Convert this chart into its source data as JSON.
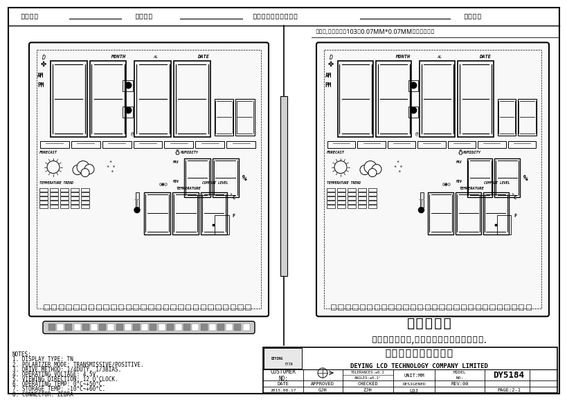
{
  "bg_color": "#ffffff",
  "header_text": [
    "排版模数",
    "确认日期",
    "客户签名确认所有图纸",
    "空盒出货"
  ],
  "note_text": "全显时,可视区内有103个0.07MM*0.07MM的交叉亮点！",
  "display_title": "显示效果图",
  "subtitle": "请提供排版模数,否则按我司按正常排版处理.",
  "notes": [
    "NOTES:",
    "1. DISPLAY TYPE: TN",
    "2. POLARIZER MODE: TRANSMISSIVE/POSITIVE.",
    "3. DRIVE METHOD: 1/4DUTY, 1/3BIAS.",
    "4. OPERATING VOLTAGE: 4.5V.",
    "5. VIEWING DIRECTION: 12 O'CLOCK.",
    "6. OPERATING TEMP: 0°C~+50°C.",
    "7. STORAGE TEMP: -10°C~+60°C.",
    "8. CONNECTOR: ZEBRA"
  ],
  "company_cn": "德盈液晶电子有限公司",
  "company_en": "DEYING LCD TECHNOLOGY COMPANY LIMITED",
  "td_customer": "CUSTOMER\nNO:",
  "td_tolerances": "TOLERANCES:±0.2",
  "td_angles": "ANGLES:±0.1°",
  "td_unit": "UNIT:MM",
  "td_model_label": "MODEL\nNO:",
  "td_model_no": "DY5184",
  "td_date": "DATE",
  "td_approved": "APPROVED",
  "td_checked": "CHECKED",
  "td_designed": "DESIGENED",
  "td_rev": "REV:00",
  "td_date_val": "2015.08.17",
  "td_gjh": "GJH",
  "td_zjh": "ZJH",
  "td_lqj": "LQJ",
  "td_page": "PAGE:2-1"
}
